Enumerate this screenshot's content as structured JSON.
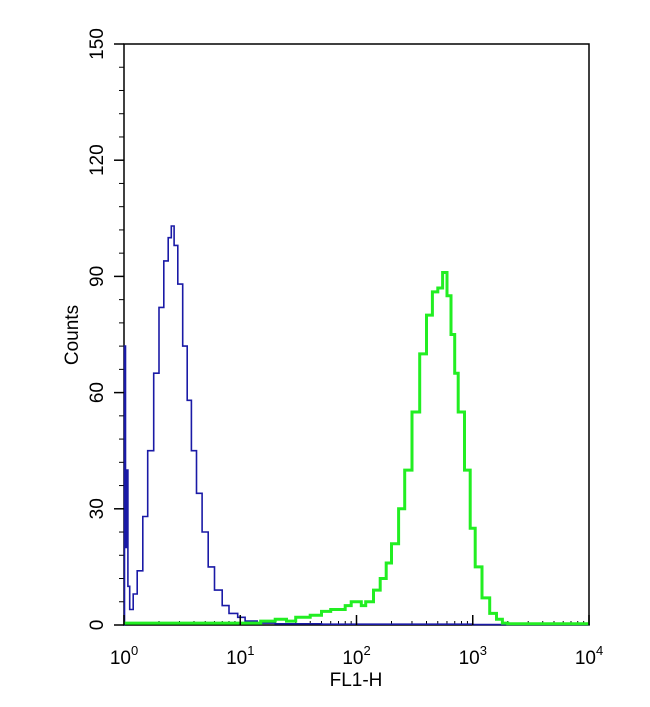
{
  "chart_data": {
    "type": "line",
    "title": "",
    "xlabel": "FL1-H",
    "ylabel": "Counts",
    "xscale": "log",
    "xlim": [
      1,
      10000
    ],
    "ylim": [
      0,
      150
    ],
    "grid": false,
    "legend": "none",
    "x_ticks": [
      {
        "value": 1,
        "base": "10",
        "exp": "0"
      },
      {
        "value": 10,
        "base": "10",
        "exp": "1"
      },
      {
        "value": 100,
        "base": "10",
        "exp": "2"
      },
      {
        "value": 1000,
        "base": "10",
        "exp": "3"
      },
      {
        "value": 10000,
        "base": "10",
        "exp": "4"
      }
    ],
    "y_ticks": [
      {
        "value": 0,
        "label": "0"
      },
      {
        "value": 30,
        "label": "30"
      },
      {
        "value": 60,
        "label": "60"
      },
      {
        "value": 90,
        "label": "90"
      },
      {
        "value": 120,
        "label": "120"
      },
      {
        "value": 150,
        "label": "150"
      }
    ],
    "series": [
      {
        "color": "#1a1aa6",
        "points": [
          [
            1.0,
            0
          ],
          [
            1.01,
            72
          ],
          [
            1.03,
            20
          ],
          [
            1.05,
            40
          ],
          [
            1.08,
            10
          ],
          [
            1.12,
            4
          ],
          [
            1.2,
            8
          ],
          [
            1.3,
            14
          ],
          [
            1.45,
            28
          ],
          [
            1.6,
            45
          ],
          [
            1.8,
            65
          ],
          [
            2.0,
            82
          ],
          [
            2.2,
            94
          ],
          [
            2.4,
            100
          ],
          [
            2.55,
            103
          ],
          [
            2.7,
            98
          ],
          [
            2.9,
            88
          ],
          [
            3.2,
            72
          ],
          [
            3.5,
            58
          ],
          [
            3.8,
            45
          ],
          [
            4.2,
            34
          ],
          [
            4.7,
            24
          ],
          [
            5.3,
            15
          ],
          [
            6.0,
            9
          ],
          [
            7.0,
            5
          ],
          [
            8.0,
            3
          ],
          [
            9.5,
            2
          ],
          [
            11,
            1
          ],
          [
            14,
            0.5
          ],
          [
            20,
            0.3
          ],
          [
            50,
            0.2
          ],
          [
            200,
            0.2
          ],
          [
            1000,
            0.1
          ],
          [
            10000,
            0
          ]
        ]
      },
      {
        "color": "#22ee22",
        "points": [
          [
            1.0,
            0.5
          ],
          [
            10,
            0.5
          ],
          [
            15,
            1
          ],
          [
            20,
            1.5
          ],
          [
            25,
            1
          ],
          [
            30,
            2
          ],
          [
            40,
            2.5
          ],
          [
            50,
            3.5
          ],
          [
            60,
            4
          ],
          [
            70,
            4
          ],
          [
            80,
            5
          ],
          [
            90,
            6
          ],
          [
            100,
            6
          ],
          [
            110,
            5
          ],
          [
            120,
            6
          ],
          [
            140,
            9
          ],
          [
            160,
            12
          ],
          [
            180,
            16
          ],
          [
            200,
            21
          ],
          [
            230,
            30
          ],
          [
            260,
            40
          ],
          [
            300,
            55
          ],
          [
            350,
            70
          ],
          [
            400,
            80
          ],
          [
            450,
            86
          ],
          [
            500,
            87
          ],
          [
            550,
            91
          ],
          [
            600,
            85
          ],
          [
            650,
            75
          ],
          [
            700,
            65
          ],
          [
            750,
            55
          ],
          [
            850,
            40
          ],
          [
            950,
            25
          ],
          [
            1050,
            15
          ],
          [
            1200,
            7
          ],
          [
            1400,
            3
          ],
          [
            1600,
            1.5
          ],
          [
            1800,
            0.5
          ],
          [
            2000,
            0.3
          ],
          [
            10000,
            0.3
          ]
        ]
      }
    ]
  }
}
